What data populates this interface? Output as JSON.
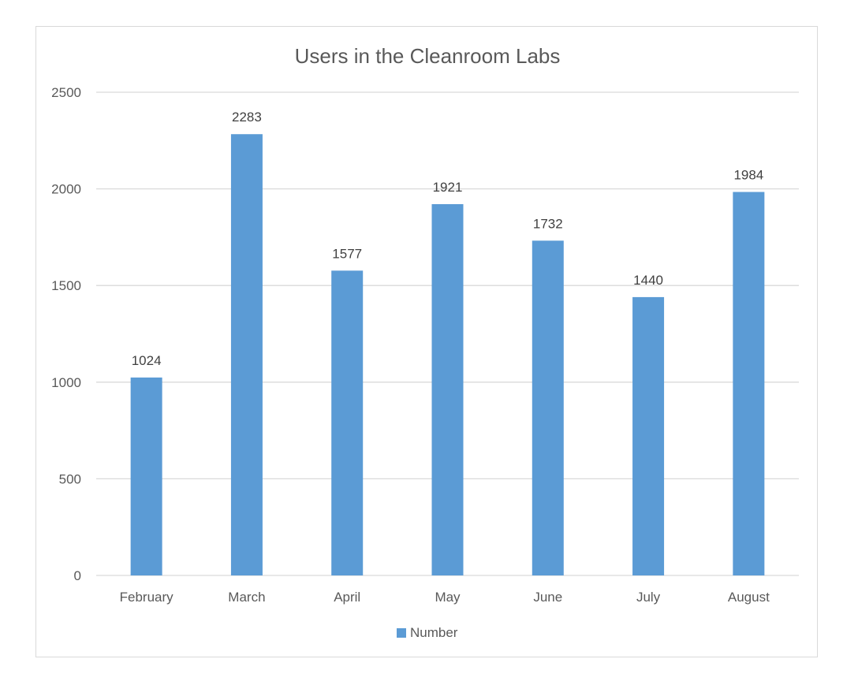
{
  "chart_data": {
    "type": "bar",
    "title": "Users in the Cleanroom Labs",
    "categories": [
      "February",
      "March",
      "April",
      "May",
      "June",
      "July",
      "August"
    ],
    "series": [
      {
        "name": "Number",
        "values": [
          1024,
          2283,
          1577,
          1921,
          1732,
          1440,
          1984
        ],
        "color": "#5b9bd5"
      }
    ],
    "ylim": [
      0,
      2500
    ],
    "yticks": [
      "0",
      "500",
      "1000",
      "1500",
      "2000",
      "2500"
    ],
    "grid": true,
    "legend": "bottom",
    "data_labels": true
  }
}
